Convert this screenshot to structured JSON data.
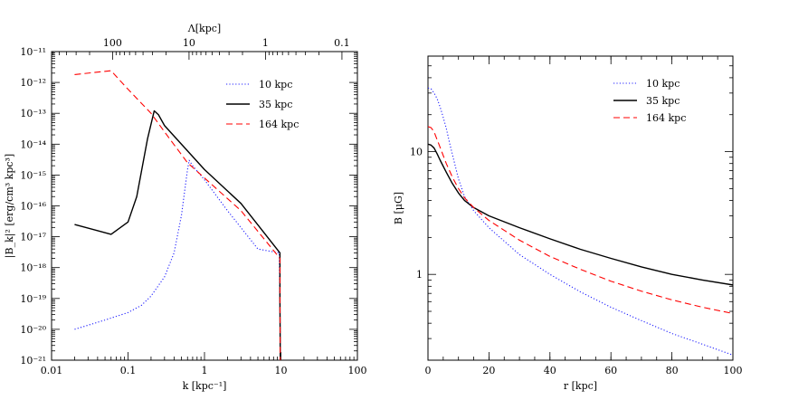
{
  "chart_data": [
    {
      "type": "line",
      "xlabel": "k [kpc⁻¹]",
      "ylabel": "|B_k|² [erg/cm³ kpc³]",
      "x_scale": "log",
      "y_scale": "log",
      "xlim": [
        0.01,
        100
      ],
      "ylim": [
        1e-21,
        1e-11
      ],
      "top_axis": {
        "label": "Λ[kpc]",
        "ticks": [
          {
            "label": "100",
            "k": 0.0628
          },
          {
            "label": "10",
            "k": 0.628
          },
          {
            "label": "1",
            "k": 6.28
          },
          {
            "label": "0.1",
            "k": 62.8
          }
        ]
      },
      "x_ticks": [
        {
          "value": 0.01,
          "label": "0.01"
        },
        {
          "value": 0.1,
          "label": "0.1"
        },
        {
          "value": 1,
          "label": "1"
        },
        {
          "value": 10,
          "label": "10"
        },
        {
          "value": 100,
          "label": "100"
        }
      ],
      "y_ticks": [
        {
          "value": 1e-21,
          "label": "10⁻²¹"
        },
        {
          "value": 1e-20,
          "label": "10⁻²⁰"
        },
        {
          "value": 1e-19,
          "label": "10⁻¹⁹"
        },
        {
          "value": 1e-18,
          "label": "10⁻¹⁸"
        },
        {
          "value": 1e-17,
          "label": "10⁻¹⁷"
        },
        {
          "value": 1e-16,
          "label": "10⁻¹⁶"
        },
        {
          "value": 1e-15,
          "label": "10⁻¹⁵"
        },
        {
          "value": 1e-14,
          "label": "10⁻¹⁴"
        },
        {
          "value": 1e-13,
          "label": "10⁻¹³"
        },
        {
          "value": 1e-12,
          "label": "10⁻¹²"
        },
        {
          "value": 1e-11,
          "label": "10⁻¹¹"
        }
      ],
      "legend_position": "top-right",
      "series": [
        {
          "name": "10 kpc",
          "color": "#2020ff",
          "dash": "dotted",
          "x": [
            0.02,
            0.05,
            0.1,
            0.15,
            0.2,
            0.3,
            0.4,
            0.5,
            0.55,
            0.6,
            0.63,
            0.7,
            1,
            2,
            5,
            9.5,
            9.7,
            9.8
          ],
          "y": [
            1e-20,
            2e-20,
            3.5e-20,
            6e-20,
            1.2e-19,
            5e-19,
            3e-18,
            5e-17,
            3e-16,
            1.5e-15,
            3e-15,
            2e-15,
            7e-16,
            7e-17,
            4e-18,
            3e-18,
            1e-19,
            1e-21
          ]
        },
        {
          "name": "35 kpc",
          "color": "#000000",
          "dash": "solid",
          "x": [
            0.02,
            0.06,
            0.1,
            0.13,
            0.18,
            0.22,
            0.25,
            0.3,
            1,
            3,
            9.7,
            9.7,
            9.8
          ],
          "y": [
            2.5e-17,
            1.2e-17,
            3e-17,
            2e-16,
            1.5e-14,
            1.2e-13,
            9e-14,
            4e-14,
            1.5e-15,
            1.2e-16,
            3e-18,
            1e-19,
            1e-21
          ]
        },
        {
          "name": "164 kpc",
          "color": "#ff0000",
          "dash": "dashed",
          "x": [
            0.02,
            0.06,
            0.1,
            0.2,
            0.3,
            0.6,
            1,
            3,
            9.7,
            9.7,
            9.8
          ],
          "y": [
            1.8e-12,
            2.4e-12,
            6e-13,
            1e-13,
            2.5e-14,
            2.5e-15,
            8e-16,
            7e-17,
            2e-18,
            1e-19,
            1e-21
          ]
        }
      ]
    },
    {
      "type": "line",
      "xlabel": "r [kpc]",
      "ylabel": "B [μG]",
      "x_scale": "linear",
      "y_scale": "log",
      "xlim": [
        0,
        100
      ],
      "ylim": [
        0.2,
        60
      ],
      "x_ticks": [
        {
          "value": 0,
          "label": "0"
        },
        {
          "value": 20,
          "label": "20"
        },
        {
          "value": 40,
          "label": "40"
        },
        {
          "value": 60,
          "label": "60"
        },
        {
          "value": 80,
          "label": "80"
        },
        {
          "value": 100,
          "label": "100"
        }
      ],
      "y_ticks": [
        {
          "value": 1,
          "label": "1"
        },
        {
          "value": 10,
          "label": "10"
        }
      ],
      "legend_position": "top-right",
      "series": [
        {
          "name": "10 kpc",
          "color": "#2020ff",
          "dash": "dotted",
          "x": [
            0,
            1,
            2,
            3,
            4,
            5,
            6,
            7,
            8,
            10,
            12,
            15,
            20,
            30,
            40,
            50,
            60,
            70,
            80,
            90,
            100
          ],
          "y": [
            33,
            32.5,
            30,
            27,
            23,
            19,
            15.5,
            12,
            9.5,
            6,
            4.3,
            3.3,
            2.4,
            1.45,
            1.0,
            0.72,
            0.54,
            0.42,
            0.33,
            0.27,
            0.22
          ]
        },
        {
          "name": "35 kpc",
          "color": "#000000",
          "dash": "solid",
          "x": [
            0,
            1,
            2,
            3,
            4,
            6,
            8,
            10,
            12,
            15,
            20,
            30,
            40,
            50,
            60,
            70,
            80,
            90,
            100
          ],
          "y": [
            11.5,
            11.3,
            10.7,
            9.6,
            8.5,
            6.8,
            5.5,
            4.6,
            4.0,
            3.5,
            3.0,
            2.4,
            1.95,
            1.6,
            1.35,
            1.15,
            1.0,
            0.9,
            0.82
          ]
        },
        {
          "name": "164 kpc",
          "color": "#ff0000",
          "dash": "dashed",
          "x": [
            0,
            1,
            2,
            3,
            4,
            6,
            8,
            10,
            12,
            15,
            20,
            30,
            40,
            50,
            60,
            70,
            80,
            90,
            100
          ],
          "y": [
            16,
            15.7,
            14.5,
            12.5,
            10.8,
            8.0,
            6.2,
            5.0,
            4.2,
            3.5,
            2.75,
            1.9,
            1.4,
            1.1,
            0.88,
            0.73,
            0.62,
            0.54,
            0.48
          ]
        }
      ]
    }
  ]
}
